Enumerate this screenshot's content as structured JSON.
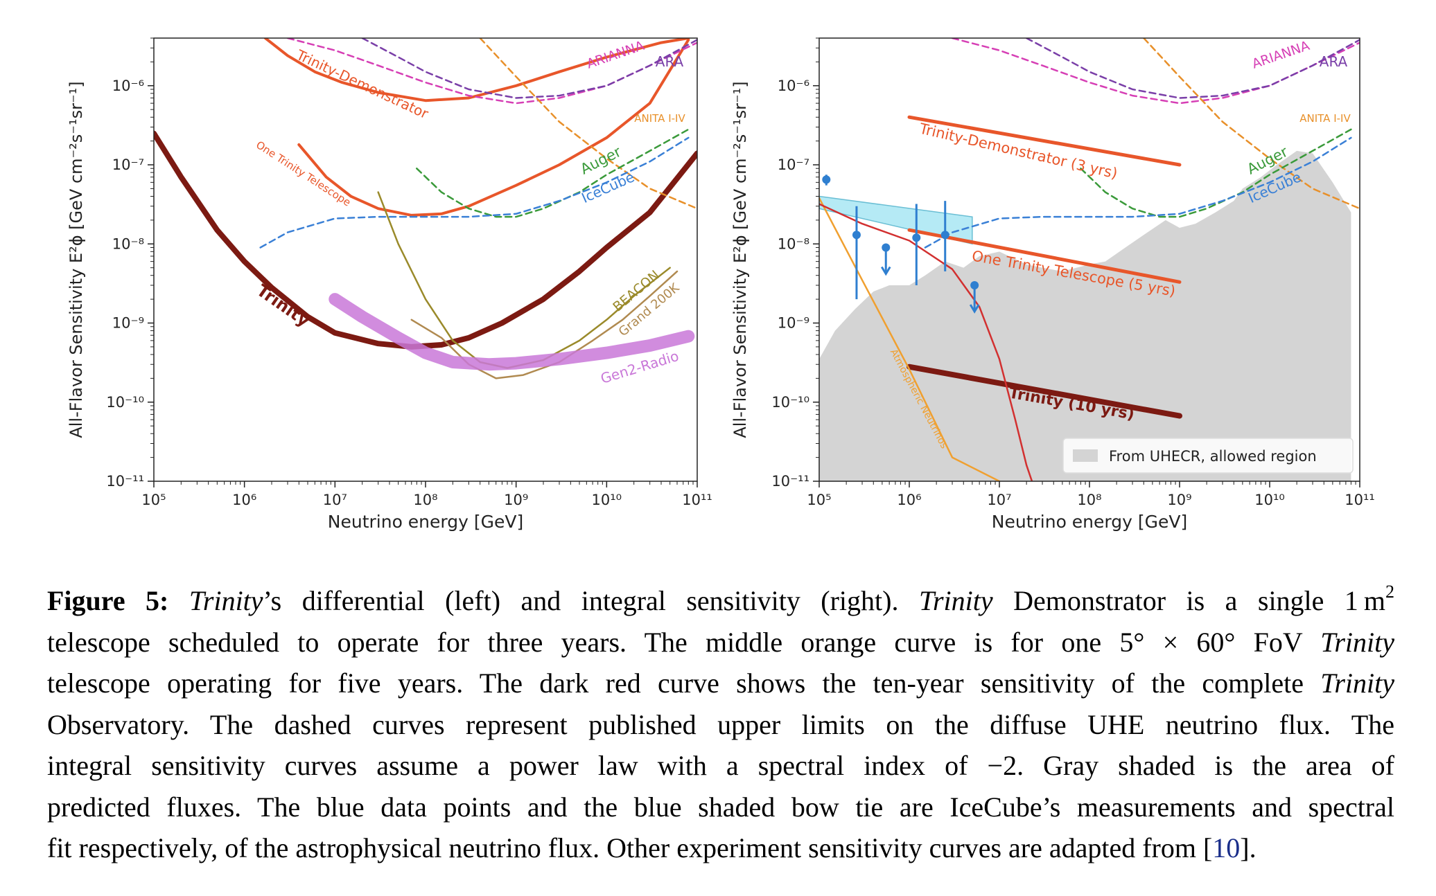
{
  "chart_data": [
    {
      "type": "line",
      "panel": "left",
      "xlabel": "Neutrino energy [GeV]",
      "ylabel": "All-Flavor Sensitivity E²ϕ [GeV cm⁻²s⁻¹sr⁻¹]",
      "xscale": "log",
      "yscale": "log",
      "xlim": [
        100000,
        100000000000
      ],
      "ylim": [
        1e-11,
        4e-06
      ],
      "xticks": [
        100000,
        1000000,
        10000000,
        100000000,
        1000000000,
        10000000000,
        100000000000
      ],
      "xtick_labels": [
        "10⁵",
        "10⁶",
        "10⁷",
        "10⁸",
        "10⁹",
        "10¹⁰",
        "10¹¹"
      ],
      "yticks": [
        1e-11,
        1e-10,
        1e-09,
        1e-08,
        1e-07,
        1e-06
      ],
      "ytick_labels": [
        "10⁻¹¹",
        "10⁻¹⁰",
        "10⁻⁹",
        "10⁻⁸",
        "10⁻⁷",
        "10⁻⁶"
      ],
      "series": [
        {
          "name": "Trinity-Demonstrator",
          "color": "#e8562a",
          "dash": false,
          "width": 4,
          "x": [
            1700000.0,
            3000000.0,
            6000000.0,
            12000000.0,
            30000000.0,
            100000000.0,
            300000000.0,
            1000000000.0,
            3000000000.0,
            10000000000.0,
            40000000000.0,
            80000000000.0
          ],
          "y": [
            4e-06,
            2.4e-06,
            1.5e-06,
            1.1e-06,
            8.2e-07,
            6.5e-07,
            7e-07,
            1e-06,
            1.5e-06,
            2.3e-06,
            3.5e-06,
            4e-06
          ]
        },
        {
          "name": "One Trinity Telescope",
          "color": "#e8562a",
          "dash": false,
          "width": 4,
          "x": [
            4000000.0,
            8000000.0,
            15000000.0,
            30000000.0,
            70000000.0,
            150000000.0,
            300000000.0,
            1000000000.0,
            3000000000.0,
            10000000000.0,
            30000000000.0,
            80000000000.0
          ],
          "y": [
            1.8e-07,
            7e-08,
            4e-08,
            2.8e-08,
            2.3e-08,
            2.4e-08,
            3e-08,
            5.5e-08,
            1e-07,
            2.2e-07,
            6e-07,
            3.8e-06
          ]
        },
        {
          "name": "Trinity",
          "color": "#7c1a12",
          "dash": false,
          "width": 8,
          "x": [
            100000.0,
            200000.0,
            500000.0,
            1000000.0,
            2000000.0,
            5000000.0,
            10000000.0,
            30000000.0,
            70000000.0,
            150000000.0,
            300000000.0,
            700000000.0,
            2000000000.0,
            5000000000.0,
            10000000000.0,
            30000000000.0,
            100000000000.0
          ],
          "y": [
            2.5e-07,
            7e-08,
            1.5e-08,
            6e-09,
            2.8e-09,
            1.2e-09,
            7.5e-10,
            5.5e-10,
            5e-10,
            5.3e-10,
            6.5e-10,
            1e-09,
            2e-09,
            4.5e-09,
            9e-09,
            2.5e-08,
            1.4e-07
          ]
        },
        {
          "name": "ARIANNA",
          "color": "#d63fb5",
          "dash": true,
          "width": 2.5,
          "x": [
            3000000.0,
            10000000.0,
            30000000.0,
            100000000.0,
            300000000.0,
            1000000000.0,
            3000000000.0,
            10000000000.0,
            30000000000.0,
            100000000000.0
          ],
          "y": [
            4e-06,
            2.8e-06,
            1.8e-06,
            1.1e-06,
            7.5e-07,
            6e-07,
            7e-07,
            1e-06,
            1.8e-06,
            3.5e-06
          ]
        },
        {
          "name": "ARA",
          "color": "#7a3fa8",
          "dash": true,
          "width": 2.5,
          "x": [
            20000000.0,
            50000000.0,
            100000000.0,
            300000000.0,
            1000000000.0,
            3000000000.0,
            10000000000.0,
            30000000000.0,
            100000000000.0
          ],
          "y": [
            4e-06,
            2.3e-06,
            1.5e-06,
            9e-07,
            7e-07,
            7.5e-07,
            1e-06,
            1.8e-06,
            3.8e-06
          ]
        },
        {
          "name": "ANITA I-IV",
          "color": "#e8902a",
          "dash": true,
          "width": 2.5,
          "x": [
            400000000.0,
            1000000000.0,
            3000000000.0,
            10000000000.0,
            30000000000.0,
            100000000000.0
          ],
          "y": [
            4e-06,
            1.3e-06,
            3.5e-07,
            1.2e-07,
            5e-08,
            2.8e-08
          ]
        },
        {
          "name": "Auger",
          "color": "#3a9a3a",
          "dash": true,
          "width": 2.5,
          "x": [
            80000000.0,
            150000000.0,
            300000000.0,
            600000000.0,
            1000000000.0,
            2000000000.0,
            5000000000.0,
            10000000000.0,
            30000000000.0,
            80000000000.0
          ],
          "y": [
            9e-08,
            4.5e-08,
            2.8e-08,
            2.2e-08,
            2.2e-08,
            2.8e-08,
            4.5e-08,
            7.5e-08,
            1.5e-07,
            2.8e-07
          ]
        },
        {
          "name": "IceCube",
          "color": "#3a80d6",
          "dash": true,
          "width": 2.5,
          "x": [
            1500000.0,
            3000000.0,
            10000000.0,
            30000000.0,
            100000000.0,
            300000000.0,
            1000000000.0,
            3000000000.0,
            10000000000.0,
            30000000000.0,
            80000000000.0
          ],
          "y": [
            9e-09,
            1.4e-08,
            2.1e-08,
            2.2e-08,
            2.2e-08,
            2.2e-08,
            2.4e-08,
            3.5e-08,
            6e-08,
            1.1e-07,
            2.2e-07
          ]
        },
        {
          "name": "BEACON",
          "color": "#9a8a2a",
          "dash": false,
          "width": 2.5,
          "x": [
            30000000.0,
            50000000.0,
            100000000.0,
            200000000.0,
            400000000.0,
            800000000.0,
            2000000000.0,
            5000000000.0,
            10000000000.0,
            20000000000.0,
            50000000000.0
          ],
          "y": [
            4.5e-08,
            1e-08,
            2e-09,
            6e-10,
            3.2e-10,
            2.7e-10,
            3.4e-10,
            6e-10,
            1.1e-09,
            2.2e-09,
            5e-09
          ]
        },
        {
          "name": "Grand 200K",
          "color": "#b08a50",
          "dash": false,
          "width": 2.5,
          "x": [
            70000000.0,
            150000000.0,
            300000000.0,
            600000000.0,
            1200000000.0,
            3000000000.0,
            7000000000.0,
            15000000000.0,
            30000000000.0,
            60000000000.0
          ],
          "y": [
            1.1e-09,
            6.5e-10,
            3e-10,
            2e-10,
            2.2e-10,
            3.2e-10,
            6e-10,
            1.1e-09,
            2.2e-09,
            4.5e-09
          ]
        },
        {
          "name": "Gen2-Radio",
          "color": "#c978d8",
          "dash": false,
          "width": 18,
          "opacity": 0.85,
          "x": [
            10000000.0,
            20000000.0,
            50000000.0,
            100000000.0,
            200000000.0,
            500000000.0,
            1000000000.0,
            3000000000.0,
            10000000000.0,
            30000000000.0,
            80000000000.0
          ],
          "y": [
            2e-09,
            1.2e-09,
            6.5e-10,
            4.2e-10,
            3.2e-10,
            3e-10,
            3.1e-10,
            3.5e-10,
            4.2e-10,
            5.2e-10,
            6.8e-10
          ]
        }
      ],
      "labels": [
        {
          "text": "Trinity-Demonstrator",
          "color": "#e8562a"
        },
        {
          "text": "One Trinity Telescope",
          "color": "#e8562a"
        },
        {
          "text": "Trinity",
          "color": "#7c1a12"
        },
        {
          "text": "ARIANNA",
          "color": "#d63fb5"
        },
        {
          "text": "ARA",
          "color": "#7a3fa8"
        },
        {
          "text": "ANITA I-IV",
          "color": "#e8902a"
        },
        {
          "text": "Auger",
          "color": "#3a9a3a"
        },
        {
          "text": "IceCube",
          "color": "#3a80d6"
        },
        {
          "text": "BEACON",
          "color": "#9a8a2a"
        },
        {
          "text": "Grand 200K",
          "color": "#b08a50"
        },
        {
          "text": "Gen2-Radio",
          "color": "#c978d8"
        }
      ]
    },
    {
      "type": "line",
      "panel": "right",
      "xlabel": "Neutrino energy [GeV]",
      "ylabel": "All-Flavor Sensitivity E²ϕ [GeV cm⁻²s⁻¹sr⁻¹]",
      "xscale": "log",
      "yscale": "log",
      "xlim": [
        100000,
        100000000000
      ],
      "ylim": [
        1e-11,
        4e-06
      ],
      "xticks": [
        100000,
        1000000,
        10000000,
        100000000,
        1000000000,
        10000000000,
        100000000000
      ],
      "xtick_labels": [
        "10⁵",
        "10⁶",
        "10⁷",
        "10⁸",
        "10⁹",
        "10¹⁰",
        "10¹¹"
      ],
      "yticks": [
        1e-11,
        1e-10,
        1e-09,
        1e-08,
        1e-07,
        1e-06
      ],
      "ytick_labels": [
        "10⁻¹¹",
        "10⁻¹⁰",
        "10⁻⁹",
        "10⁻⁸",
        "10⁻⁷",
        "10⁻⁶"
      ],
      "legend": {
        "entries": [
          "From UHECR, allowed region"
        ],
        "placement": "lower right",
        "color": "#d4d4d4"
      },
      "shaded_region": {
        "name": "From UHECR, allowed region",
        "color": "#d4d4d4",
        "x": [
          100000.0,
          150000.0,
          250000.0,
          400000.0,
          600000.0,
          1000000.0,
          1500000.0,
          2500000.0,
          4000000.0,
          6000000.0,
          10000000.0,
          20000000.0,
          30000000.0,
          50000000.0,
          100000000.0,
          150000000.0,
          250000000.0,
          400000000.0,
          700000000.0,
          1000000000.0,
          1500000000.0,
          2500000000.0,
          4000000000.0,
          5000000000.0,
          8000000000.0,
          12000000000.0,
          20000000000.0,
          30000000000.0,
          50000000000.0,
          80000000000.0
        ],
        "y": [
          3.5e-10,
          8e-10,
          1.5e-09,
          2.5e-09,
          3e-09,
          3e-09,
          4e-09,
          6e-09,
          5e-09,
          7e-09,
          8e-09,
          5.5e-09,
          5e-09,
          4.5e-09,
          5.5e-09,
          6e-09,
          9e-09,
          1.3e-08,
          2e-08,
          1.6e-08,
          1.8e-08,
          2.5e-08,
          3.5e-08,
          5e-08,
          7e-08,
          1e-07,
          1.5e-07,
          1.4e-07,
          6e-08,
          2.5e-08
        ]
      },
      "bowtie": {
        "name": "IceCube spectral fit",
        "color": "#aee8f4",
        "x": [
          100000.0,
          5000000.0
        ],
        "upper": [
          4e-08,
          2.2e-08
        ],
        "lower": [
          2.8e-08,
          1e-08
        ]
      },
      "icecube_points": [
        {
          "x": 120000.0,
          "y": 6.5e-08,
          "ylo": 5.5e-08,
          "yhi": 7.5e-08
        },
        {
          "x": 260000.0,
          "y": 1.3e-08,
          "ylo": 2e-09,
          "yhi": 3e-08
        },
        {
          "x": 550000.0,
          "y": 9e-09,
          "upper_limit": true
        },
        {
          "x": 1200000.0,
          "y": 1.2e-08,
          "ylo": 3e-09,
          "yhi": 3.2e-08
        },
        {
          "x": 2500000.0,
          "y": 1.3e-08,
          "ylo": 4.5e-09,
          "yhi": 3.5e-08
        },
        {
          "x": 5300000.0,
          "y": 3e-09,
          "upper_limit": true
        }
      ],
      "series": [
        {
          "name": "Trinity-Demonstrator (3 yrs)",
          "color": "#e8562a",
          "dash": false,
          "width": 5,
          "x": [
            1000000.0,
            1000000000.0
          ],
          "y": [
            4e-07,
            1e-07
          ]
        },
        {
          "name": "One Trinity Telescope (5 yrs)",
          "color": "#e8562a",
          "dash": false,
          "width": 5,
          "x": [
            1000000.0,
            1000000000.0
          ],
          "y": [
            1.5e-08,
            3.3e-09
          ]
        },
        {
          "name": "Trinity (10 yrs)",
          "color": "#7c1a12",
          "dash": false,
          "width": 8,
          "x": [
            1000000.0,
            1000000000.0
          ],
          "y": [
            2.8e-10,
            6.7e-11
          ]
        },
        {
          "name": "Atmospheric Neutrinos",
          "color": "#f0a030",
          "dash": false,
          "width": 2.5,
          "x": [
            100000.0,
            300000.0,
            1000000.0,
            3000000.0,
            10000000.0
          ],
          "y": [
            3.8e-08,
            3.5e-09,
            2.6e-10,
            2e-11,
            1e-11
          ]
        },
        {
          "name": "",
          "color": "#d23030",
          "dash": false,
          "width": 2.5,
          "x": [
            100000.0,
            300000.0,
            1000000.0,
            3000000.0,
            6000000.0,
            10000000.0,
            15000000.0,
            20000000.0,
            23000000.0
          ],
          "y": [
            3.2e-08,
            1.8e-08,
            1.1e-08,
            4.8e-09,
            1.6e-09,
            3.5e-10,
            6e-11,
            1.6e-11,
            1e-11
          ]
        },
        {
          "name": "ARIANNA",
          "color": "#d63fb5",
          "dash": true,
          "width": 2.5,
          "x": [
            3000000.0,
            10000000.0,
            30000000.0,
            100000000.0,
            300000000.0,
            1000000000.0,
            3000000000.0,
            10000000000.0,
            30000000000.0,
            100000000000.0
          ],
          "y": [
            4e-06,
            2.8e-06,
            1.8e-06,
            1.1e-06,
            7.5e-07,
            6e-07,
            7e-07,
            1e-06,
            1.8e-06,
            3.5e-06
          ]
        },
        {
          "name": "ARA",
          "color": "#7a3fa8",
          "dash": true,
          "width": 2.5,
          "x": [
            20000000.0,
            50000000.0,
            100000000.0,
            300000000.0,
            1000000000.0,
            3000000000.0,
            10000000000.0,
            30000000000.0,
            100000000000.0
          ],
          "y": [
            4e-06,
            2.3e-06,
            1.5e-06,
            9e-07,
            7e-07,
            7.5e-07,
            1e-06,
            1.8e-06,
            3.8e-06
          ]
        },
        {
          "name": "ANITA I-IV",
          "color": "#e8902a",
          "dash": true,
          "width": 2.5,
          "x": [
            400000000.0,
            1000000000.0,
            3000000000.0,
            10000000000.0,
            30000000000.0,
            100000000000.0
          ],
          "y": [
            4e-06,
            1.3e-06,
            3.5e-07,
            1.2e-07,
            5e-08,
            2.8e-08
          ]
        },
        {
          "name": "Auger",
          "color": "#3a9a3a",
          "dash": true,
          "width": 2.5,
          "x": [
            80000000.0,
            150000000.0,
            300000000.0,
            600000000.0,
            1000000000.0,
            2000000000.0,
            5000000000.0,
            10000000000.0,
            30000000000.0,
            80000000000.0
          ],
          "y": [
            9e-08,
            4.5e-08,
            2.8e-08,
            2.2e-08,
            2.2e-08,
            2.8e-08,
            4.5e-08,
            7.5e-08,
            1.5e-07,
            2.8e-07
          ]
        },
        {
          "name": "IceCube",
          "color": "#3a80d6",
          "dash": true,
          "width": 2.5,
          "x": [
            1500000.0,
            3000000.0,
            10000000.0,
            30000000.0,
            100000000.0,
            300000000.0,
            1000000000.0,
            3000000000.0,
            10000000000.0,
            30000000000.0,
            80000000000.0
          ],
          "y": [
            9e-09,
            1.4e-08,
            2.1e-08,
            2.2e-08,
            2.2e-08,
            2.2e-08,
            2.4e-08,
            3.5e-08,
            6e-08,
            1.1e-07,
            2.2e-07
          ]
        }
      ],
      "labels": [
        {
          "text": "Trinity-Demonstrator (3 yrs)",
          "color": "#e8562a"
        },
        {
          "text": "One Trinity Telescope (5 yrs)",
          "color": "#e8562a"
        },
        {
          "text": "Trinity (10 yrs)",
          "color": "#7c1a12"
        },
        {
          "text": "Atmospheric Neutrinos",
          "color": "#f0a030"
        },
        {
          "text": "ARIANNA",
          "color": "#d63fb5"
        },
        {
          "text": "ARA",
          "color": "#7a3fa8"
        },
        {
          "text": "ANITA I-IV",
          "color": "#e8902a"
        },
        {
          "text": "Auger",
          "color": "#3a9a3a"
        },
        {
          "text": "IceCube",
          "color": "#3a80d6"
        }
      ]
    }
  ],
  "caption": {
    "label": "Figure 5:",
    "lines": [
      [
        "Trinity",
        "’s differential (left) and integral sensitivity (right). ",
        "Trinity",
        " Demonstrator is a single 1 m",
        "2"
      ],
      [
        "telescope scheduled to operate for three years.  The middle orange curve is for one 5° × 60° FoV ",
        "Trinity"
      ],
      [
        "telescope operating for five years. The dark red curve shows the ten-year sensitivity of the complete ",
        "Trinity"
      ],
      [
        "Observatory.  The dashed curves represent published upper limits on the diffuse UHE neutrino flux.  The"
      ],
      [
        "integral sensitivity curves assume a power law with a spectral index of −2.  Gray shaded is the area of"
      ],
      [
        "predicted fluxes. The blue data points and the blue shaded bow tie are IceCube’s measurements and spectral"
      ],
      [
        "fit respectively, of the astrophysical neutrino flux. Other experiment sensitivity curves are adapted from [",
        "10",
        "]."
      ]
    ]
  }
}
